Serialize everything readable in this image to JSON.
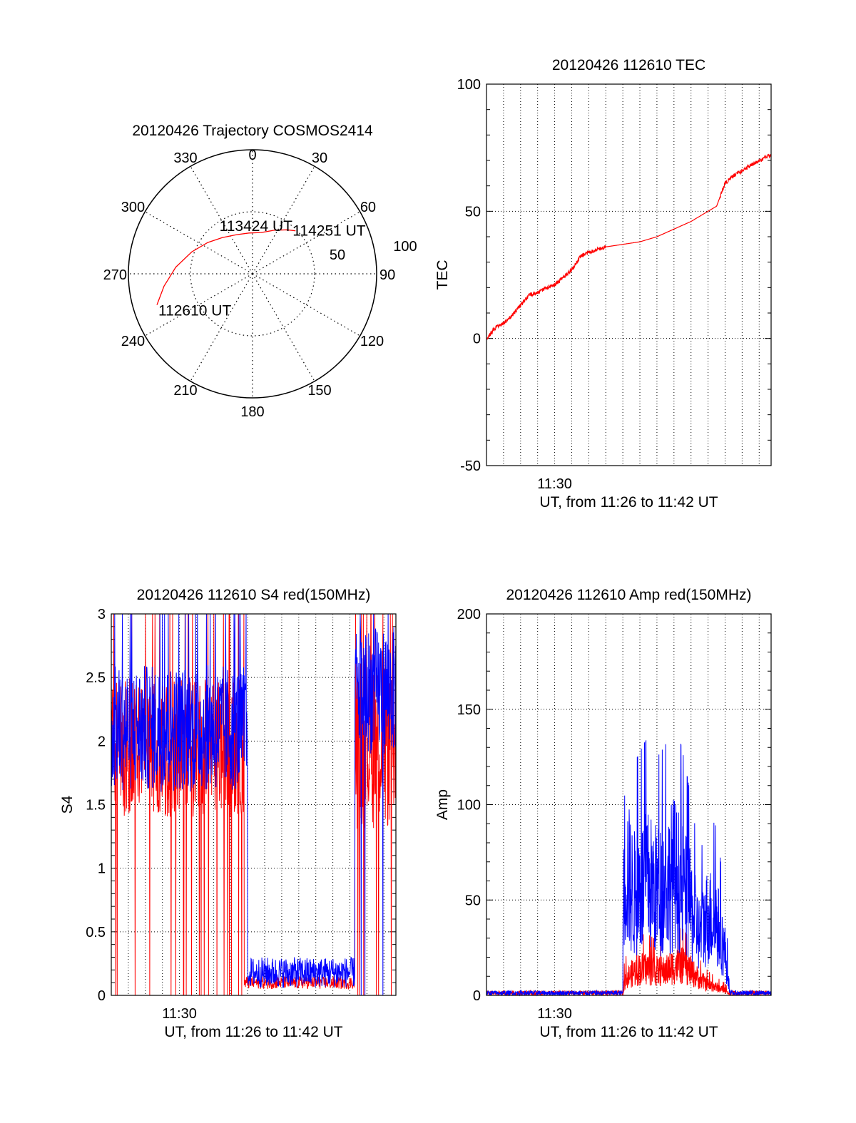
{
  "colors": {
    "red": "#ff0000",
    "blue": "#0000ff",
    "axis": "#000000",
    "grid": "#000000",
    "background": "#ffffff"
  },
  "chart_data": [
    {
      "id": "trajectory",
      "type": "polar",
      "title": "20120426 Trajectory COSMOS2414",
      "azimuth_labels": [
        "0",
        "30",
        "60",
        "90",
        "120",
        "150",
        "180",
        "210",
        "240",
        "270",
        "300",
        "330"
      ],
      "elevation_ring_labels": [
        "50",
        "100"
      ],
      "grid": true,
      "track_color": "#ff0000",
      "track": [
        {
          "az": 252,
          "r": 81
        },
        {
          "az": 262,
          "r": 72
        },
        {
          "az": 275,
          "r": 62
        },
        {
          "az": 290,
          "r": 52
        },
        {
          "az": 305,
          "r": 44
        },
        {
          "az": 320,
          "r": 38
        },
        {
          "az": 338,
          "r": 34
        },
        {
          "az": 355,
          "r": 33
        },
        {
          "az": 12,
          "r": 34
        },
        {
          "az": 26,
          "r": 39
        },
        {
          "az": 38,
          "r": 45
        },
        {
          "az": 45,
          "r": 49
        }
      ],
      "annotations": [
        {
          "text": "114251 UT",
          "az": 45,
          "r": 49
        },
        {
          "text": "113424 UT",
          "az": 5,
          "r": 37
        },
        {
          "text": "112610 UT",
          "az": 252,
          "r": 81
        }
      ]
    },
    {
      "id": "tec",
      "type": "line",
      "title": "20120426 112610 TEC",
      "ylabel": "TEC",
      "xlabel": "UT, from 11:26 to 11:42 UT",
      "xticks": [
        "11:30"
      ],
      "ylim": [
        -50,
        100
      ],
      "yticks": [
        -50,
        0,
        50,
        100
      ],
      "xrange_minutes": [
        0,
        16.7
      ],
      "grid": true,
      "series": [
        {
          "color": "#ff0000",
          "points": [
            [
              0,
              0
            ],
            [
              0.5,
              4
            ],
            [
              1,
              6
            ],
            [
              1.5,
              9
            ],
            [
              2,
              13
            ],
            [
              2.5,
              17
            ],
            [
              3,
              18
            ],
            [
              3.5,
              20
            ],
            [
              4,
              21
            ],
            [
              4.5,
              24
            ],
            [
              5,
              27
            ],
            [
              5.5,
              32
            ],
            [
              6,
              34
            ],
            [
              6.5,
              35
            ],
            [
              7,
              36
            ],
            [
              8,
              37
            ],
            [
              9,
              38
            ],
            [
              10,
              40
            ],
            [
              11,
              43
            ],
            [
              12,
              46
            ],
            [
              13,
              50
            ],
            [
              13.5,
              52
            ],
            [
              14,
              61
            ],
            [
              14.5,
              64
            ],
            [
              15,
              66
            ],
            [
              15.5,
              68
            ],
            [
              16,
              70
            ],
            [
              16.7,
              72
            ]
          ]
        }
      ]
    },
    {
      "id": "s4",
      "type": "line",
      "title": "20120426 112610 S4 red(150MHz)",
      "ylabel": "S4",
      "xlabel": "UT, from 11:26 to 11:42 UT",
      "xticks": [
        "11:30"
      ],
      "ylim": [
        0,
        3
      ],
      "yticks": [
        0,
        0.5,
        1,
        1.5,
        2,
        2.5,
        3
      ],
      "xrange_minutes": [
        0,
        16.7
      ],
      "grid": true,
      "series": [
        {
          "color": "#ff0000",
          "segments": [
            {
              "x_start": 0,
              "x_end": 7.8,
              "baseline": 1.95,
              "spread": 0.55,
              "dropouts": true
            },
            {
              "x_start": 7.8,
              "x_end": 14.3,
              "baseline": 0.1,
              "spread": 0.05
            },
            {
              "x_start": 14.3,
              "x_end": 16.7,
              "baseline": 2.0,
              "spread": 0.7,
              "dropouts": true
            }
          ]
        },
        {
          "color": "#0000ff",
          "segments": [
            {
              "x_start": 0,
              "x_end": 8.0,
              "baseline": 2.1,
              "spread": 0.5,
              "dropouts": false
            },
            {
              "x_start": 8.0,
              "x_end": 14.3,
              "baseline": 0.18,
              "spread": 0.12
            },
            {
              "x_start": 14.3,
              "x_end": 16.7,
              "baseline": 2.4,
              "spread": 0.5,
              "dropouts": true
            }
          ]
        }
      ]
    },
    {
      "id": "amp",
      "type": "line",
      "title": "20120426 112610 Amp red(150MHz)",
      "ylabel": "Amp",
      "xlabel": "UT, from 11:26 to 11:42 UT",
      "xticks": [
        "11:30"
      ],
      "ylim": [
        0,
        200
      ],
      "yticks": [
        0,
        50,
        100,
        150,
        200
      ],
      "xrange_minutes": [
        0,
        16.7
      ],
      "grid": true,
      "series": [
        {
          "color": "#ff0000",
          "envelope": [
            [
              0,
              1
            ],
            [
              8,
              1
            ],
            [
              8.1,
              12
            ],
            [
              8.5,
              16
            ],
            [
              9,
              20
            ],
            [
              9.5,
              20
            ],
            [
              10,
              18
            ],
            [
              10.5,
              18
            ],
            [
              11,
              22
            ],
            [
              11.5,
              22
            ],
            [
              12,
              18
            ],
            [
              12.5,
              12
            ],
            [
              13,
              8
            ],
            [
              13.5,
              6
            ],
            [
              14,
              4
            ],
            [
              14.3,
              1
            ],
            [
              16.7,
              1
            ]
          ]
        },
        {
          "color": "#0000ff",
          "envelope": [
            [
              0,
              1
            ],
            [
              8,
              1
            ],
            [
              8.05,
              100
            ],
            [
              8.3,
              90
            ],
            [
              8.6,
              75
            ],
            [
              9,
              80
            ],
            [
              9.5,
              85
            ],
            [
              10,
              78
            ],
            [
              10.5,
              82
            ],
            [
              11,
              92
            ],
            [
              11.5,
              80
            ],
            [
              12,
              65
            ],
            [
              12.5,
              45
            ],
            [
              13,
              60
            ],
            [
              13.5,
              55
            ],
            [
              14,
              32
            ],
            [
              14.3,
              1
            ],
            [
              16.7,
              1
            ]
          ]
        }
      ]
    }
  ]
}
